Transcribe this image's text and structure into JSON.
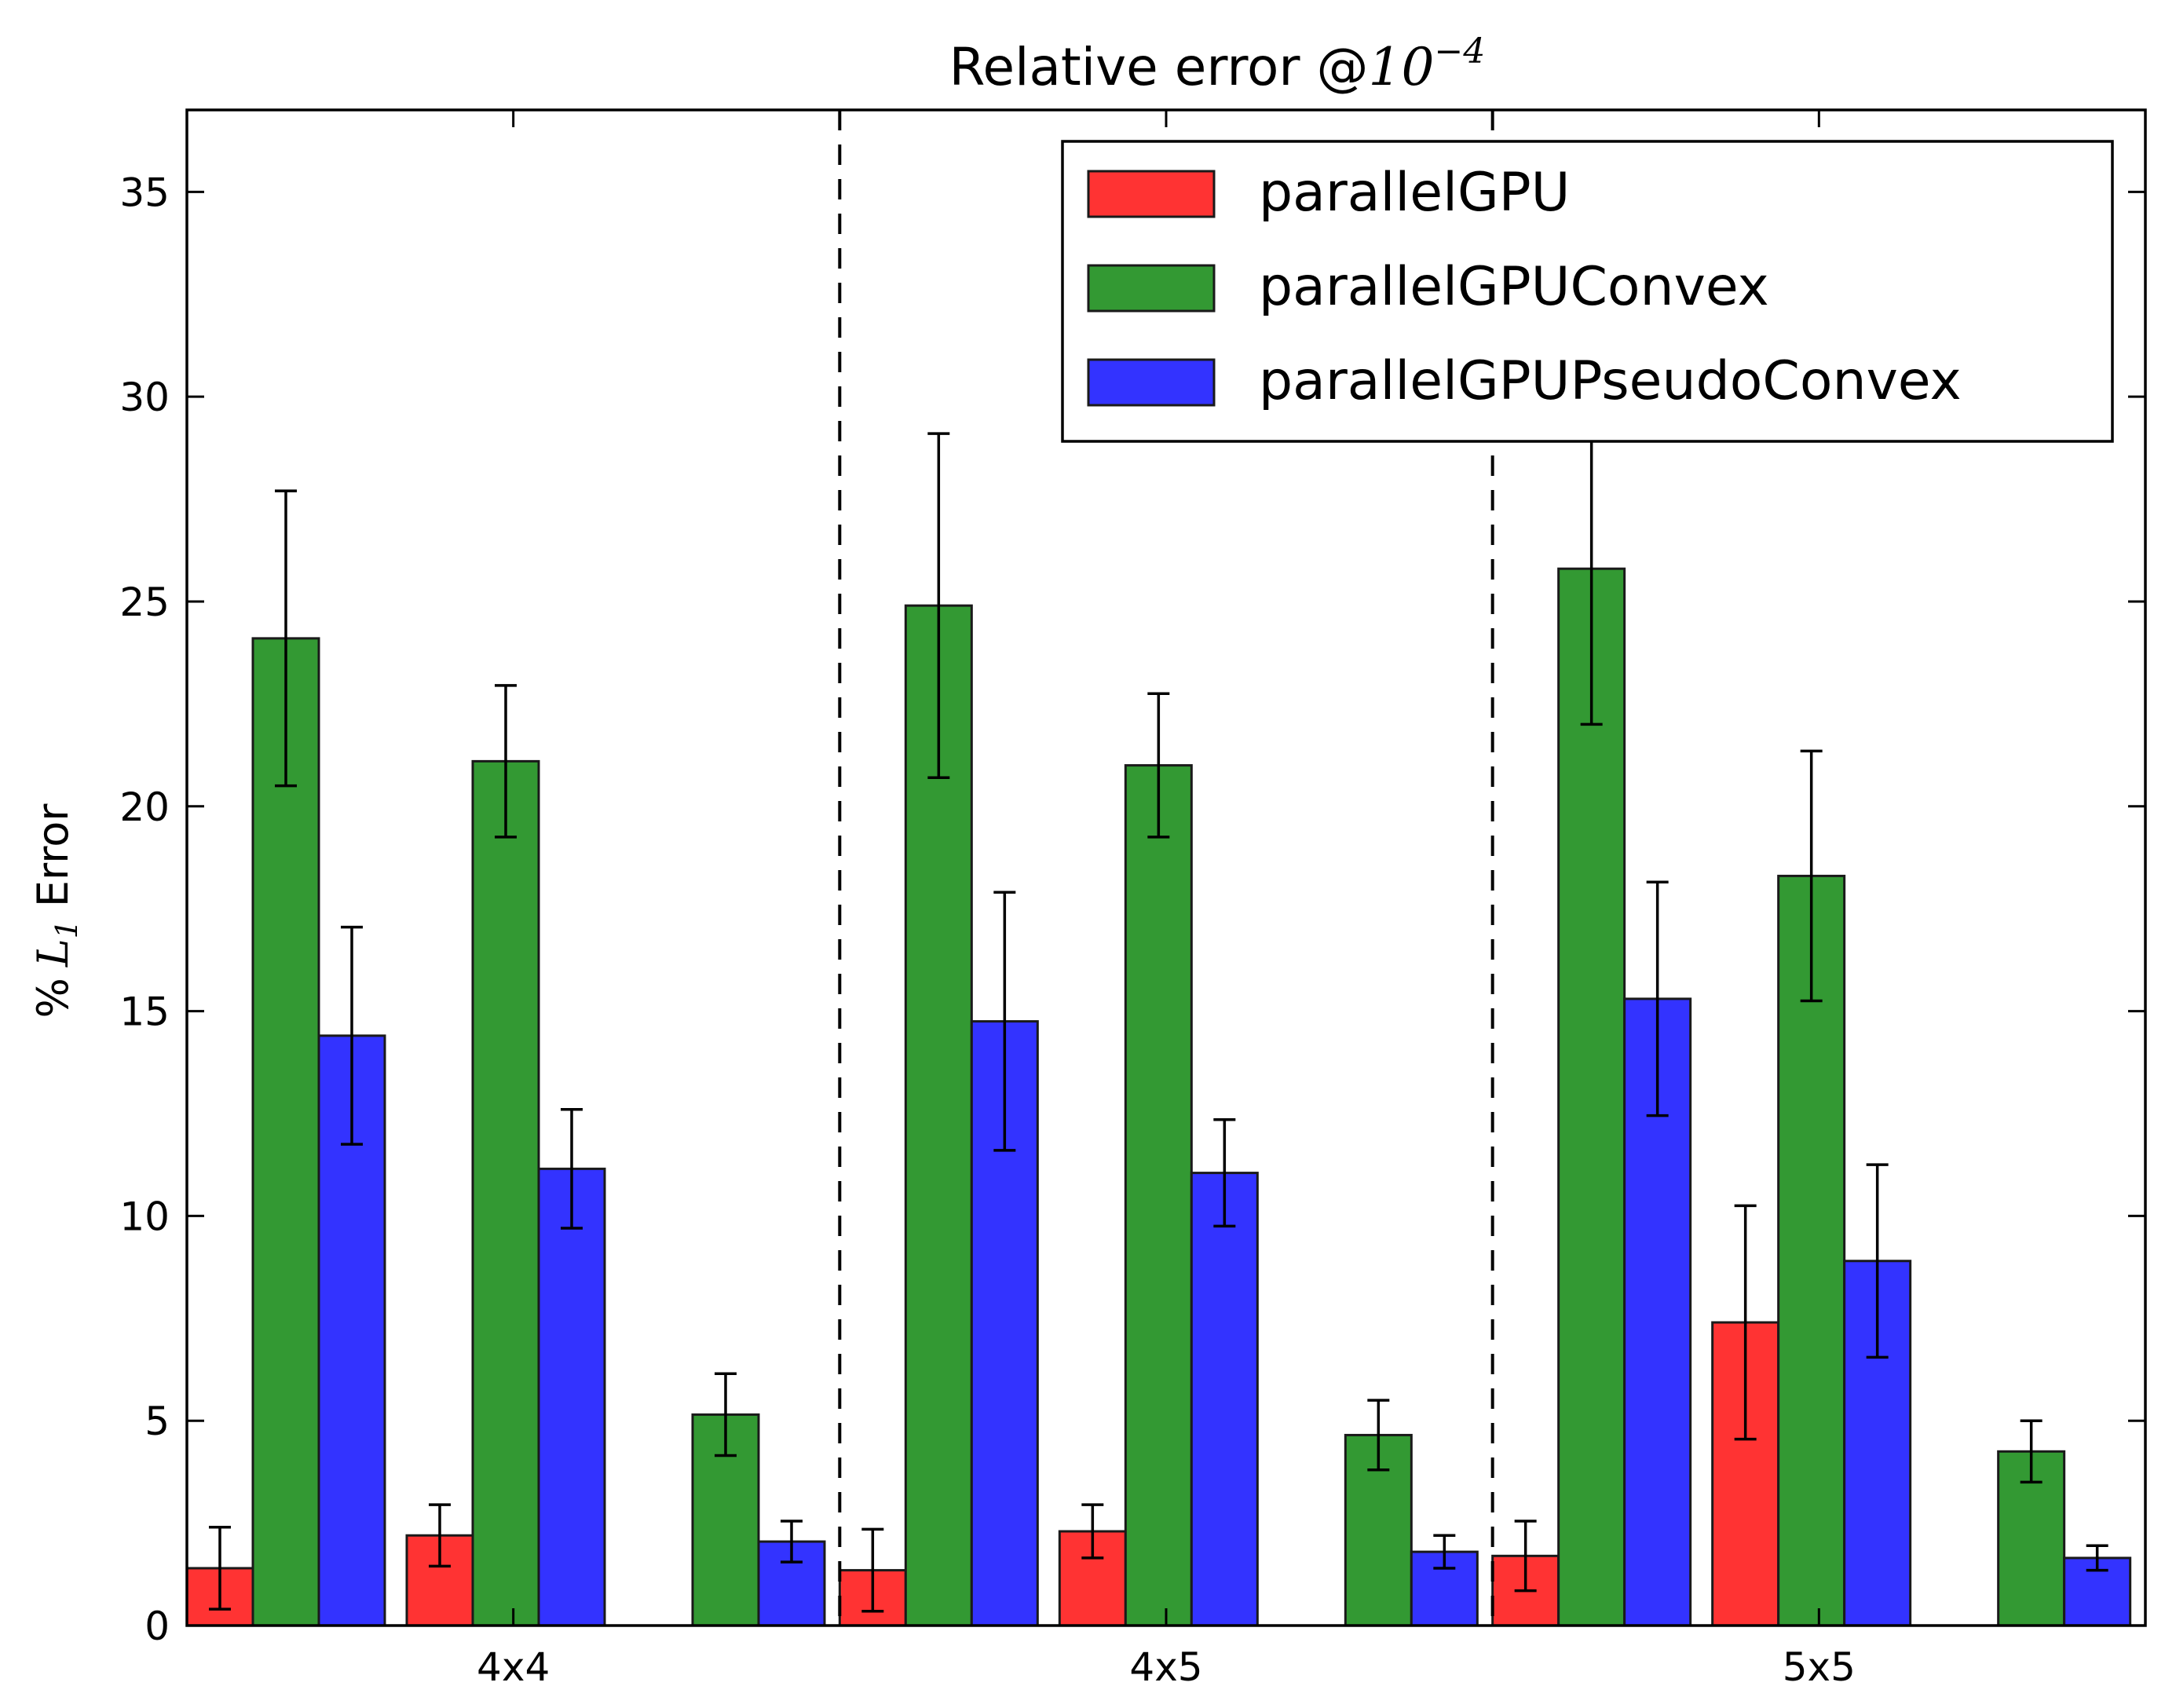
{
  "chart_data": {
    "type": "bar",
    "title": {
      "text": "Relative error @",
      "math_base": "10",
      "math_exp": "−4"
    },
    "ylabel": {
      "prefix": "%",
      "var": "L",
      "sub": "1",
      "suffix": "Error"
    },
    "xlabel": "",
    "ylim": [
      0,
      37
    ],
    "yticks": [
      0,
      5,
      10,
      15,
      20,
      25,
      30,
      35
    ],
    "grid": false,
    "legend_position": "top-right",
    "groups": [
      "4x4",
      "4x5",
      "5x5"
    ],
    "subgroups_per_group": 3,
    "series": [
      {
        "name": "parallelGPU",
        "color": "#ff3333",
        "values": [
          1.4,
          2.2,
          0.0,
          1.35,
          2.3,
          0.0,
          1.7,
          7.4,
          0.0
        ],
        "errors": [
          1.0,
          0.75,
          0.0,
          1.0,
          0.65,
          0.0,
          0.85,
          2.85,
          0.0
        ]
      },
      {
        "name": "parallelGPUConvex",
        "color": "#339933",
        "values": [
          24.1,
          21.1,
          5.15,
          24.9,
          21.0,
          4.65,
          25.8,
          18.3,
          4.25
        ],
        "errors": [
          3.6,
          1.85,
          1.0,
          4.2,
          1.75,
          0.85,
          3.8,
          3.05,
          0.75
        ]
      },
      {
        "name": "parallelGPUPseudoConvex",
        "color": "#3333ff",
        "values": [
          14.4,
          11.15,
          2.05,
          14.75,
          11.05,
          1.8,
          15.3,
          8.9,
          1.65
        ],
        "errors": [
          2.65,
          1.45,
          0.5,
          3.15,
          1.3,
          0.4,
          2.85,
          2.35,
          0.3
        ]
      }
    ],
    "legend_border_color": "#000000",
    "errorbar_color": "#000000"
  }
}
